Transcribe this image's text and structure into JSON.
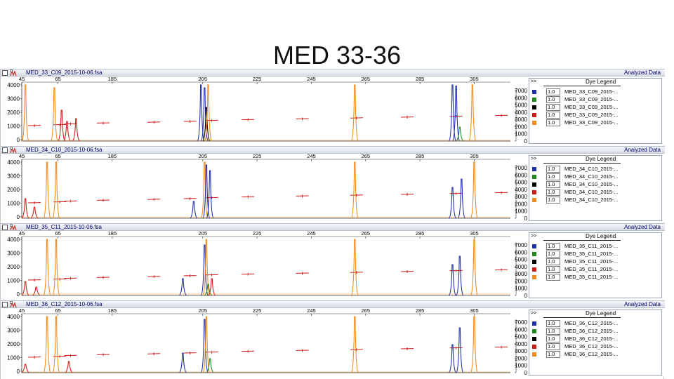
{
  "slide": {
    "title": "MED 33-36"
  },
  "panels": [
    {
      "file": "MED_33_C09_2015-10-06.fsa",
      "label": "Analyzed Data",
      "left_axis": [
        "4000",
        "3000",
        "2000",
        "1000",
        "0"
      ],
      "right_axis": [
        "7000",
        "6000",
        "5000",
        "4000",
        "3000",
        "2000",
        "1000",
        "0"
      ],
      "x_ticks": [
        "45",
        "65",
        "185",
        "205",
        "225",
        "245",
        "265",
        "285",
        "305"
      ],
      "legend": {
        "title": "Dye Legend",
        "expand": ">>",
        "rows": [
          {
            "color": "#1f2fa8",
            "scale": "1.0",
            "name": "MED_33_C09_2015-..."
          },
          {
            "color": "#1e8a1e",
            "scale": "1.0",
            "name": "MED_33_C09_2015-..."
          },
          {
            "color": "#000000",
            "scale": "1.0",
            "name": "MED_33_C09_2015-..."
          },
          {
            "color": "#d11a1a",
            "scale": "1.0",
            "name": "MED_33_C09_2015-..."
          },
          {
            "color": "#f08a1c",
            "scale": "1.0",
            "name": "MED_33_C09_2015-..."
          }
        ]
      }
    },
    {
      "file": "MED_34_C10_2015-10-06.fsa",
      "label": "Analyzed Data",
      "left_axis": [
        "4000",
        "3000",
        "2000",
        "1000",
        "0"
      ],
      "right_axis": [
        "7000",
        "6000",
        "5000",
        "4000",
        "3000",
        "2000",
        "1000",
        "0"
      ],
      "x_ticks": [
        "45",
        "65",
        "185",
        "205",
        "225",
        "245",
        "265",
        "285",
        "305"
      ],
      "legend": {
        "title": "Dye Legend",
        "expand": ">>",
        "rows": [
          {
            "color": "#1f2fa8",
            "scale": "1.0",
            "name": "MED_34_C10_2015-..."
          },
          {
            "color": "#1e8a1e",
            "scale": "1.0",
            "name": "MED_34_C10_2015-..."
          },
          {
            "color": "#000000",
            "scale": "1.0",
            "name": "MED_34_C10_2015-..."
          },
          {
            "color": "#d11a1a",
            "scale": "1.0",
            "name": "MED_34_C10_2015-..."
          },
          {
            "color": "#f08a1c",
            "scale": "1.0",
            "name": "MED_34_C10_2015-..."
          }
        ]
      }
    },
    {
      "file": "MED_35_C11_2015-10-06.fsa",
      "label": "Analyzed Data",
      "left_axis": [
        "4000",
        "3000",
        "2000",
        "1000",
        "0"
      ],
      "right_axis": [
        "7000",
        "6000",
        "5000",
        "4000",
        "3000",
        "2000",
        "1000",
        "0"
      ],
      "x_ticks": [
        "45",
        "65",
        "185",
        "205",
        "225",
        "245",
        "265",
        "285",
        "305"
      ],
      "legend": {
        "title": "Dye Legend",
        "expand": ">>",
        "rows": [
          {
            "color": "#1f2fa8",
            "scale": "1.0",
            "name": "MED_35_C11_2015-..."
          },
          {
            "color": "#1e8a1e",
            "scale": "1.0",
            "name": "MED_35_C11_2015-..."
          },
          {
            "color": "#000000",
            "scale": "1.0",
            "name": "MED_35_C11_2015-..."
          },
          {
            "color": "#d11a1a",
            "scale": "1.0",
            "name": "MED_35_C11_2015-..."
          },
          {
            "color": "#f08a1c",
            "scale": "1.0",
            "name": "MED_35_C11_2015-..."
          }
        ]
      }
    },
    {
      "file": "MED_36_C12_2015-10-06.fsa",
      "label": "Analyzed Data",
      "left_axis": [
        "4000",
        "3000",
        "2000",
        "1000",
        "0"
      ],
      "right_axis": [
        "7000",
        "6000",
        "5000",
        "4000",
        "3000",
        "2000",
        "1000",
        "0"
      ],
      "x_ticks": [
        "45",
        "65",
        "185",
        "205",
        "225",
        "245",
        "265",
        "285",
        "305"
      ],
      "legend": {
        "title": "Dye Legend",
        "expand": ">>",
        "rows": [
          {
            "color": "#1f2fa8",
            "scale": "1.0",
            "name": "MED_36_C12_2015-..."
          },
          {
            "color": "#1e8a1e",
            "scale": "1.0",
            "name": "MED_36_C12_2015-..."
          },
          {
            "color": "#000000",
            "scale": "1.0",
            "name": "MED_36_C12_2015-..."
          },
          {
            "color": "#d11a1a",
            "scale": "1.0",
            "name": "MED_36_C12_2015-..."
          },
          {
            "color": "#f08a1c",
            "scale": "1.0",
            "name": "MED_36_C12_2015-..."
          }
        ]
      }
    }
  ]
}
